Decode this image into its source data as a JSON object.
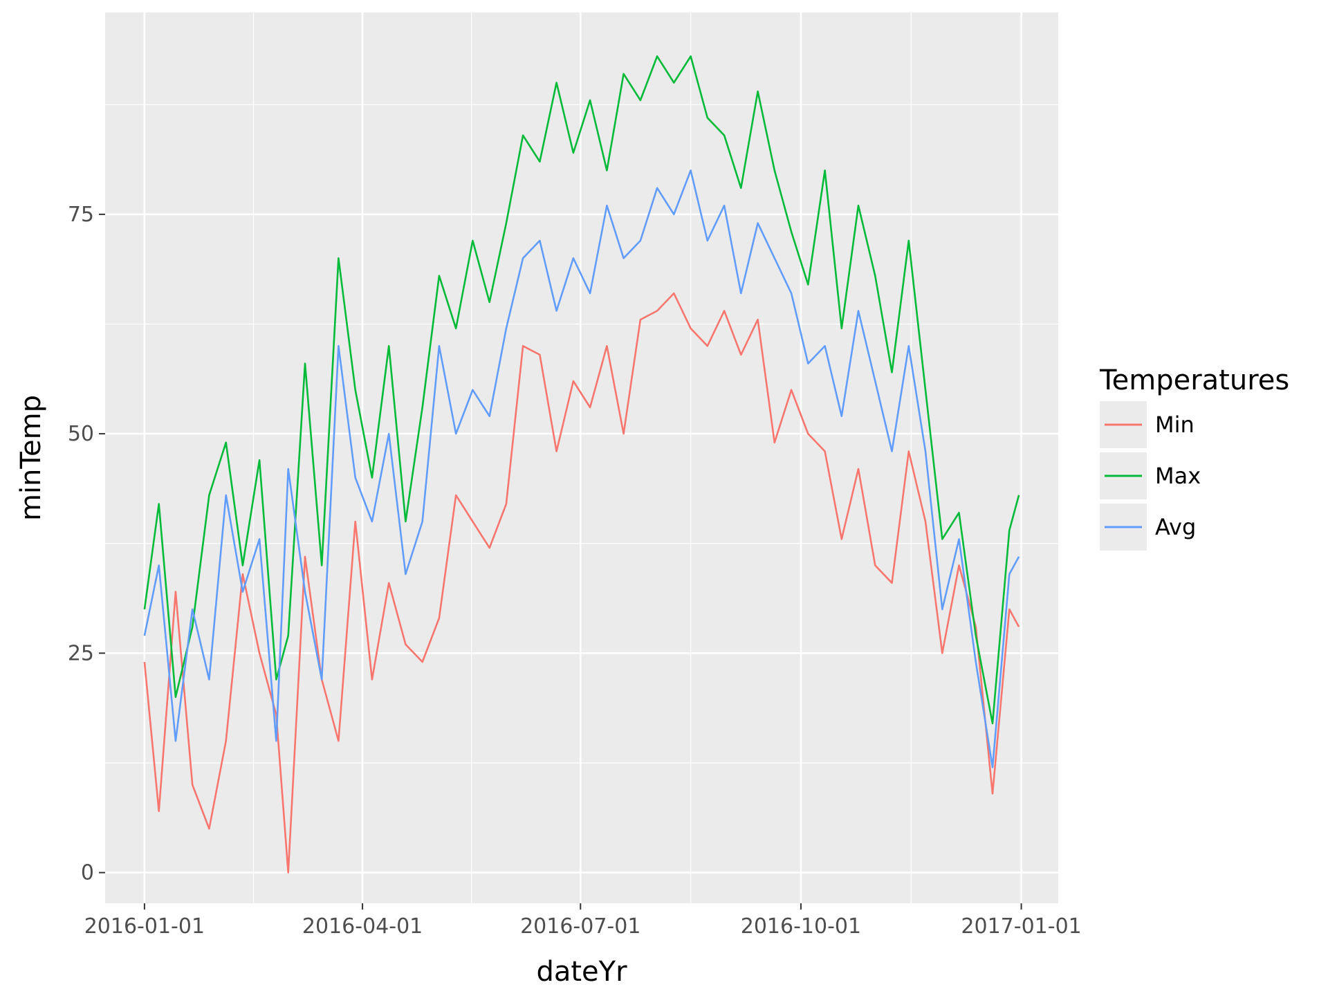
{
  "chart_data": {
    "type": "line",
    "title": "",
    "xlabel": "dateYr",
    "ylabel": "minTemp",
    "x_start": "2016-01-01",
    "x_end": "2016-12-31",
    "x_ticks": [
      "2016-01-01",
      "2016-04-01",
      "2016-07-01",
      "2016-10-01",
      "2017-01-01"
    ],
    "y_ticks": [
      0,
      25,
      50,
      75
    ],
    "ylim": [
      -3.5,
      98
    ],
    "grid": true,
    "legend": {
      "title": "Temperatures",
      "placement": "right",
      "entries": [
        "Min",
        "Max",
        "Avg"
      ]
    },
    "series": [
      {
        "name": "Min",
        "color": "#F8766D",
        "x": [
          "2016-01-01",
          "2016-01-07",
          "2016-01-14",
          "2016-01-21",
          "2016-01-28",
          "2016-02-04",
          "2016-02-11",
          "2016-02-18",
          "2016-02-25",
          "2016-03-01",
          "2016-03-08",
          "2016-03-15",
          "2016-03-22",
          "2016-03-29",
          "2016-04-05",
          "2016-04-12",
          "2016-04-19",
          "2016-04-26",
          "2016-05-03",
          "2016-05-10",
          "2016-05-17",
          "2016-05-24",
          "2016-05-31",
          "2016-06-07",
          "2016-06-14",
          "2016-06-21",
          "2016-06-28",
          "2016-07-05",
          "2016-07-12",
          "2016-07-19",
          "2016-07-26",
          "2016-08-02",
          "2016-08-09",
          "2016-08-16",
          "2016-08-23",
          "2016-08-30",
          "2016-09-06",
          "2016-09-13",
          "2016-09-20",
          "2016-09-27",
          "2016-10-04",
          "2016-10-11",
          "2016-10-18",
          "2016-10-25",
          "2016-11-01",
          "2016-11-08",
          "2016-11-15",
          "2016-11-22",
          "2016-11-29",
          "2016-12-06",
          "2016-12-13",
          "2016-12-20",
          "2016-12-27",
          "2016-12-31"
        ],
        "values": [
          24,
          7,
          32,
          10,
          5,
          15,
          34,
          25,
          18,
          0,
          36,
          22,
          15,
          40,
          22,
          33,
          26,
          24,
          29,
          43,
          40,
          37,
          42,
          60,
          59,
          48,
          56,
          53,
          60,
          50,
          63,
          64,
          66,
          62,
          60,
          64,
          59,
          63,
          49,
          55,
          50,
          48,
          38,
          46,
          35,
          33,
          48,
          40,
          25,
          35,
          28,
          9,
          30,
          28
        ]
      },
      {
        "name": "Max",
        "color": "#00BA38",
        "x": [
          "2016-01-01",
          "2016-01-07",
          "2016-01-14",
          "2016-01-21",
          "2016-01-28",
          "2016-02-04",
          "2016-02-11",
          "2016-02-18",
          "2016-02-25",
          "2016-03-01",
          "2016-03-08",
          "2016-03-15",
          "2016-03-22",
          "2016-03-29",
          "2016-04-05",
          "2016-04-12",
          "2016-04-19",
          "2016-04-26",
          "2016-05-03",
          "2016-05-10",
          "2016-05-17",
          "2016-05-24",
          "2016-05-31",
          "2016-06-07",
          "2016-06-14",
          "2016-06-21",
          "2016-06-28",
          "2016-07-05",
          "2016-07-12",
          "2016-07-19",
          "2016-07-26",
          "2016-08-02",
          "2016-08-09",
          "2016-08-16",
          "2016-08-23",
          "2016-08-30",
          "2016-09-06",
          "2016-09-13",
          "2016-09-20",
          "2016-09-27",
          "2016-10-04",
          "2016-10-11",
          "2016-10-18",
          "2016-10-25",
          "2016-11-01",
          "2016-11-08",
          "2016-11-15",
          "2016-11-22",
          "2016-11-29",
          "2016-12-06",
          "2016-12-13",
          "2016-12-20",
          "2016-12-27",
          "2016-12-31"
        ],
        "values": [
          30,
          42,
          20,
          28,
          43,
          49,
          35,
          47,
          22,
          27,
          58,
          35,
          70,
          55,
          45,
          60,
          40,
          53,
          68,
          62,
          72,
          65,
          74,
          84,
          81,
          90,
          82,
          88,
          80,
          91,
          88,
          93,
          90,
          93,
          86,
          84,
          78,
          89,
          80,
          73,
          67,
          80,
          62,
          76,
          68,
          57,
          72,
          55,
          38,
          41,
          27,
          17,
          39,
          43
        ]
      },
      {
        "name": "Avg",
        "color": "#619CFF",
        "x": [
          "2016-01-01",
          "2016-01-07",
          "2016-01-14",
          "2016-01-21",
          "2016-01-28",
          "2016-02-04",
          "2016-02-11",
          "2016-02-18",
          "2016-02-25",
          "2016-03-01",
          "2016-03-08",
          "2016-03-15",
          "2016-03-22",
          "2016-03-29",
          "2016-04-05",
          "2016-04-12",
          "2016-04-19",
          "2016-04-26",
          "2016-05-03",
          "2016-05-10",
          "2016-05-17",
          "2016-05-24",
          "2016-05-31",
          "2016-06-07",
          "2016-06-14",
          "2016-06-21",
          "2016-06-28",
          "2016-07-05",
          "2016-07-12",
          "2016-07-19",
          "2016-07-26",
          "2016-08-02",
          "2016-08-09",
          "2016-08-16",
          "2016-08-23",
          "2016-08-30",
          "2016-09-06",
          "2016-09-13",
          "2016-09-20",
          "2016-09-27",
          "2016-10-04",
          "2016-10-11",
          "2016-10-18",
          "2016-10-25",
          "2016-11-01",
          "2016-11-08",
          "2016-11-15",
          "2016-11-22",
          "2016-11-29",
          "2016-12-06",
          "2016-12-13",
          "2016-12-20",
          "2016-12-27",
          "2016-12-31"
        ],
        "values": [
          27,
          35,
          15,
          30,
          22,
          43,
          32,
          38,
          15,
          46,
          32,
          22,
          60,
          45,
          40,
          50,
          34,
          40,
          60,
          50,
          55,
          52,
          62,
          70,
          72,
          64,
          70,
          66,
          76,
          70,
          72,
          78,
          75,
          80,
          72,
          76,
          66,
          74,
          70,
          66,
          58,
          60,
          52,
          64,
          56,
          48,
          60,
          48,
          30,
          38,
          24,
          12,
          34,
          36
        ]
      }
    ]
  }
}
